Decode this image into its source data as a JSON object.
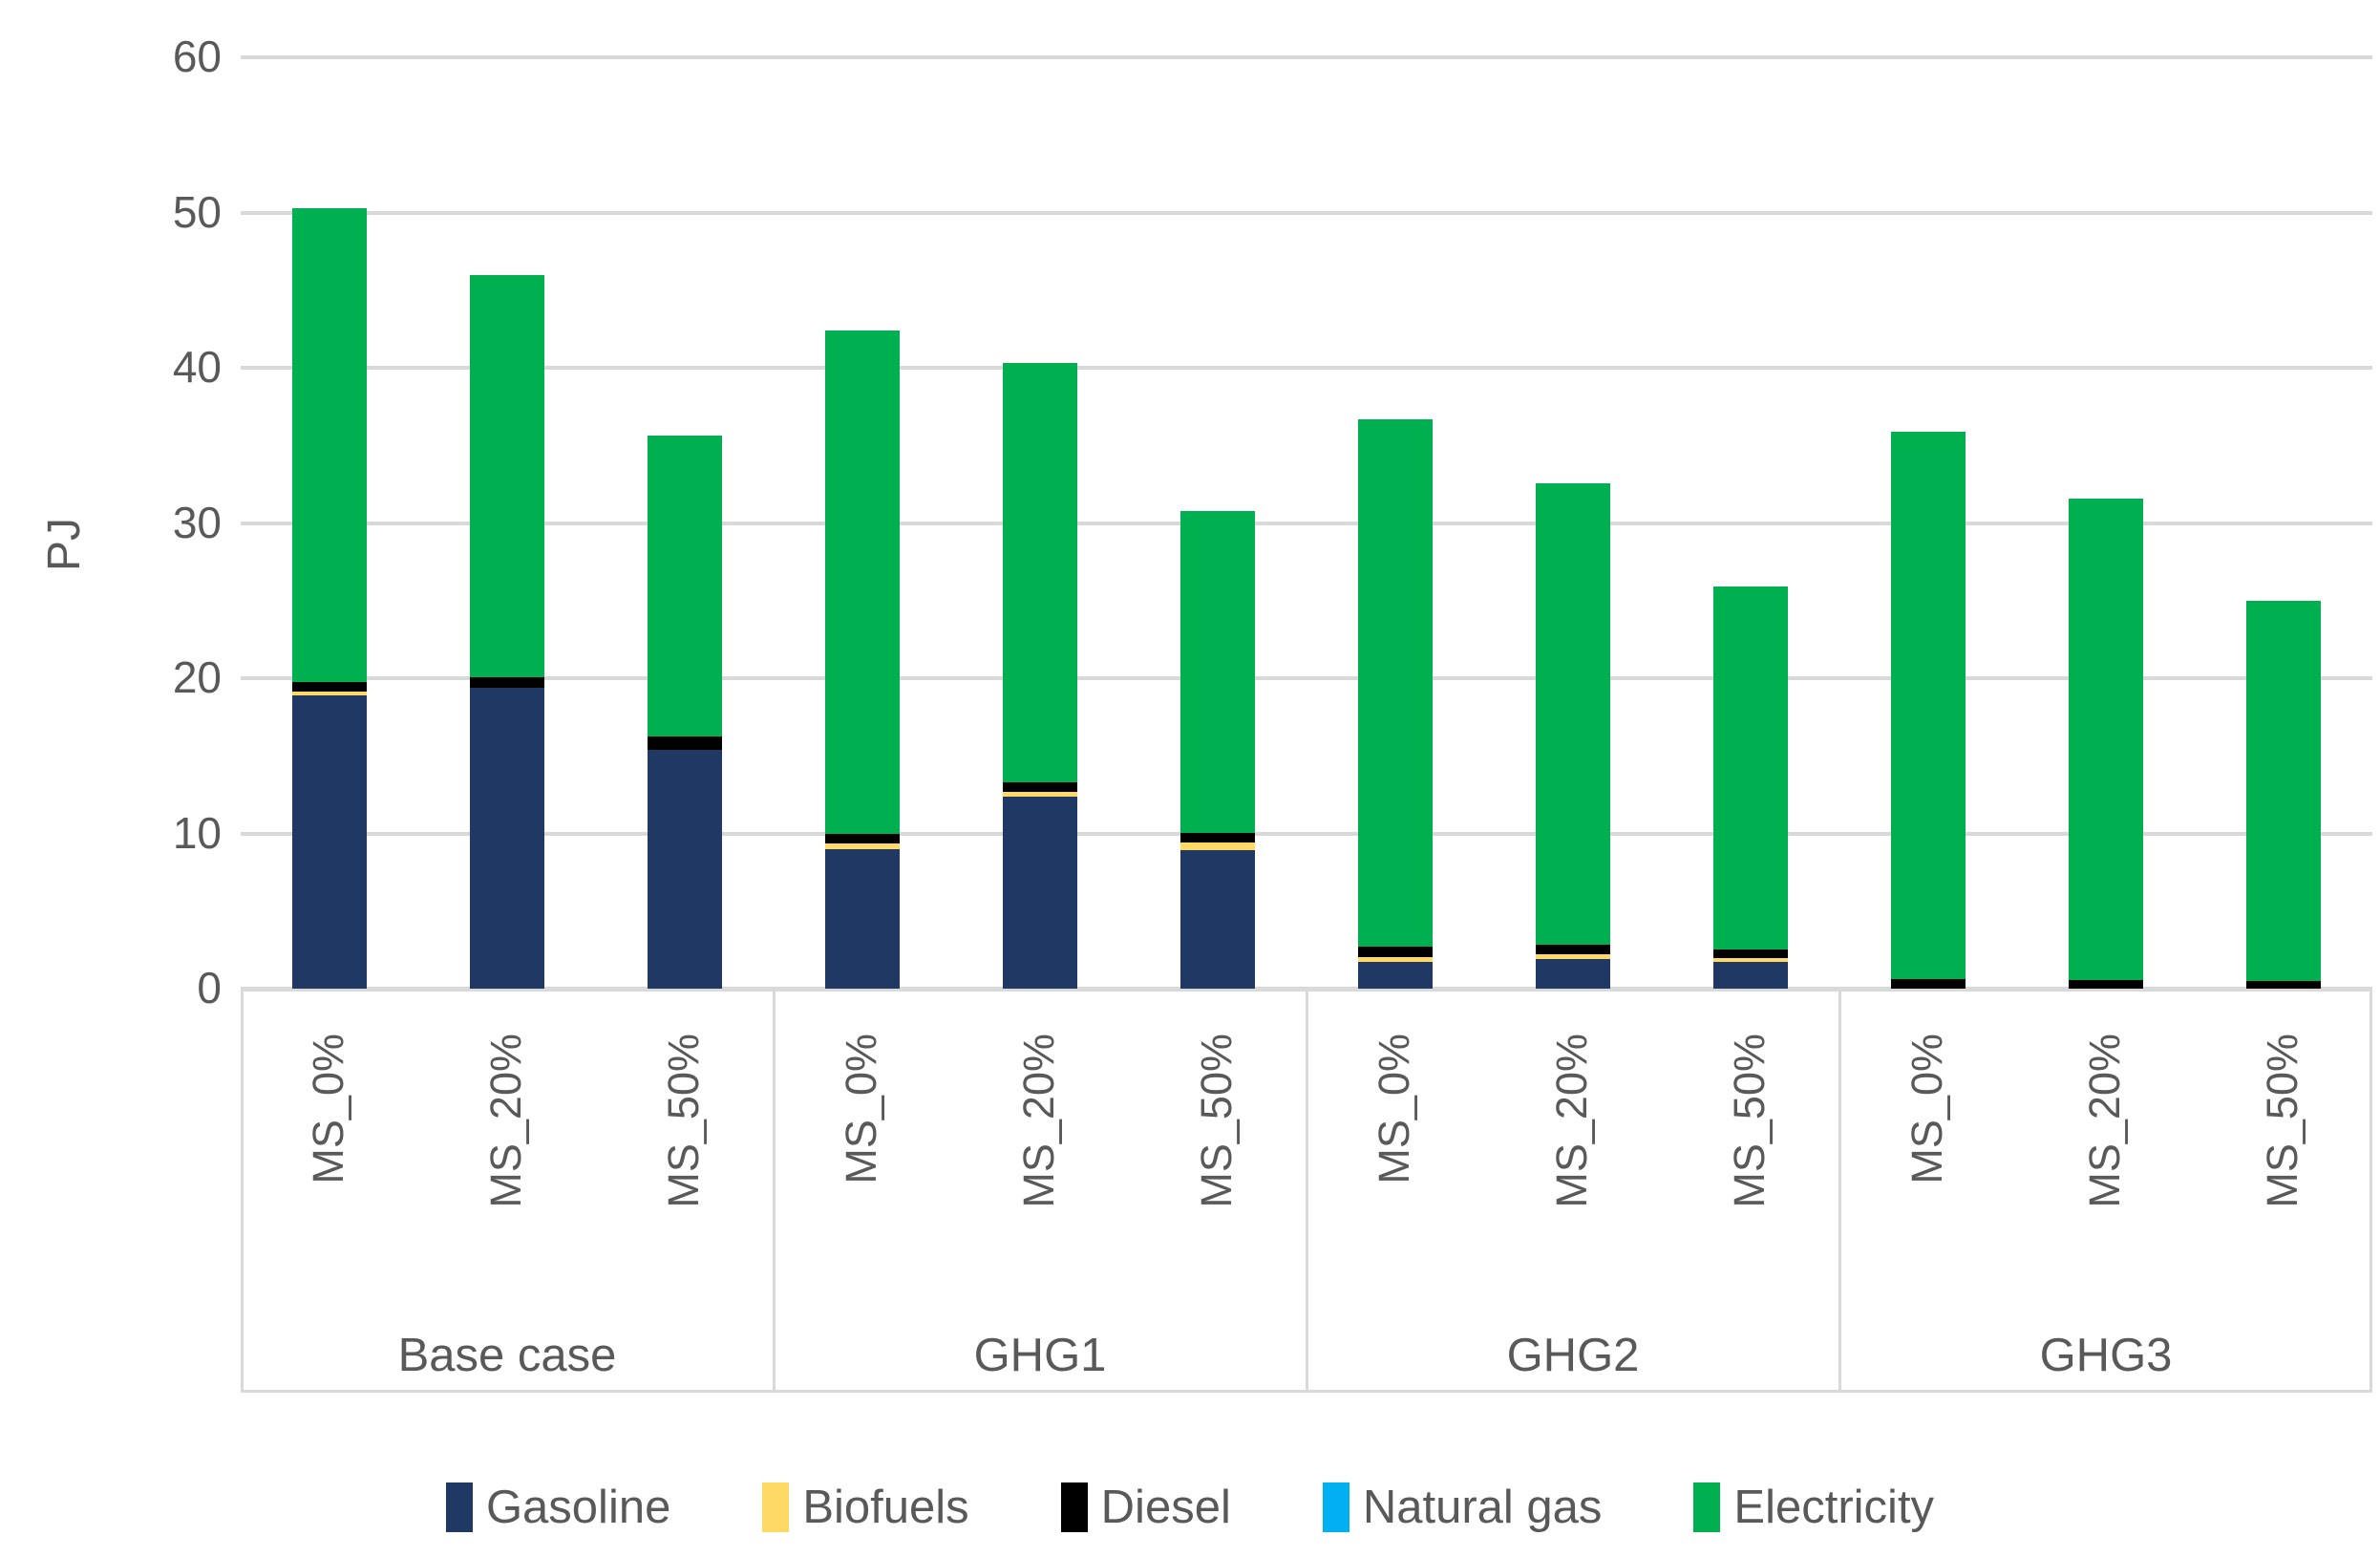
{
  "chart_data": {
    "type": "bar",
    "stacked": true,
    "ylabel": "PJ",
    "ylim": [
      0,
      60
    ],
    "yticks": [
      0,
      10,
      20,
      30,
      40,
      50,
      60
    ],
    "grid": true,
    "legend_position": "bottom",
    "axis_text_color": "#595959",
    "gridline_color": "#D9D9D9",
    "groups": [
      "Base case",
      "GHG1",
      "GHG2",
      "GHG3"
    ],
    "categories_per_group": [
      "MS_0%",
      "MS_20%",
      "MS_50%"
    ],
    "bar_labels": [
      "MS_0%",
      "MS_20%",
      "MS_50%",
      "MS_0%",
      "MS_20%",
      "MS_50%",
      "MS_0%",
      "MS_20%",
      "MS_50%",
      "MS_0%",
      "MS_20%",
      "MS_50%"
    ],
    "series": [
      {
        "name": "Gasoline",
        "color": "#1F3864",
        "values": [
          18.9,
          19.4,
          15.4,
          9.0,
          12.4,
          8.9,
          1.7,
          1.9,
          1.7,
          0,
          0,
          0
        ]
      },
      {
        "name": "Biofuels",
        "color": "#FFD966",
        "values": [
          0.25,
          0,
          0,
          0.35,
          0.3,
          0.5,
          0.35,
          0.3,
          0.25,
          0,
          0,
          0
        ]
      },
      {
        "name": "Diesel",
        "color": "#000000",
        "values": [
          0.6,
          0.65,
          0.85,
          0.65,
          0.6,
          0.65,
          0.65,
          0.65,
          0.55,
          0.6,
          0.55,
          0.5
        ]
      },
      {
        "name": "Natural gas",
        "color": "#00B0F0",
        "values": [
          0,
          0,
          0,
          0,
          0,
          0,
          0,
          0,
          0,
          0,
          0,
          0
        ]
      },
      {
        "name": "Electricity",
        "color": "#00B050",
        "values": [
          30.5,
          25.9,
          19.4,
          32.4,
          27.0,
          20.7,
          34.0,
          29.7,
          23.4,
          35.3,
          31.0,
          24.5
        ]
      }
    ],
    "totals_approx": [
      50.3,
      46.0,
      35.7,
      42.4,
      40.3,
      30.8,
      36.7,
      32.6,
      25.9,
      35.9,
      31.6,
      25.0
    ]
  }
}
